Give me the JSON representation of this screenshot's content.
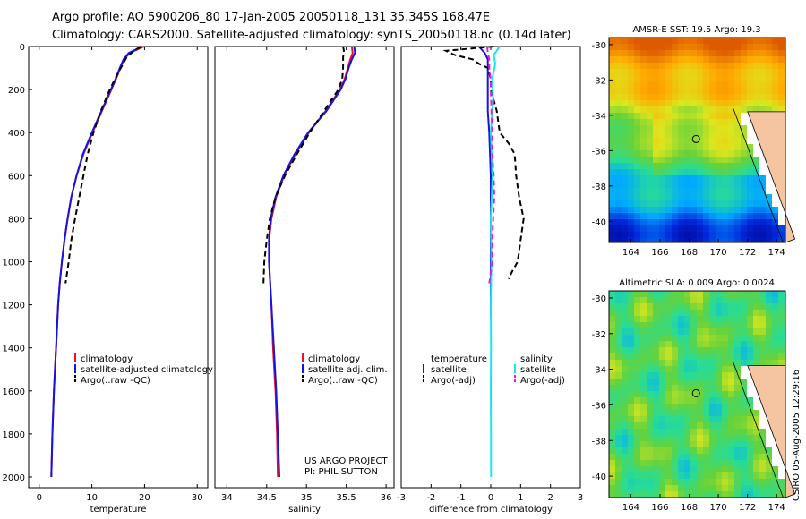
{
  "header": {
    "line1": "Argo profile: AO 5900206_80 17-Jan-2005 20050118_131 35.345S 168.47E",
    "line2": "Climatology: CARS2000. Satellite-adjusted climatology: synTS_20050118.nc (0.14d later)"
  },
  "colors": {
    "climatology": "#e8102a",
    "satellite": "#1414e6",
    "argo": "#000000",
    "sat_salinity": "#19e6e6",
    "argo_salinity": "#e619e6"
  },
  "chart_data": [
    {
      "id": "temperature",
      "type": "line",
      "xlabel": "temperature",
      "ylabel": "",
      "xlim": [
        -2,
        32
      ],
      "ylim": [
        2050,
        0
      ],
      "xticks": [
        0,
        10,
        20,
        30
      ],
      "yticks": [
        0,
        200,
        400,
        600,
        800,
        1000,
        1200,
        1400,
        1600,
        1800,
        2000
      ],
      "legend": [
        "climatology",
        "satellite-adjusted climatology",
        "Argo(..raw -QC)"
      ],
      "series": [
        {
          "name": "climatology",
          "color": "#e8102a",
          "dash": false,
          "depth": [
            0,
            30,
            60,
            100,
            150,
            200,
            300,
            400,
            500,
            600,
            700,
            800,
            900,
            1000,
            1100,
            1200,
            1400,
            1600,
            1800,
            2000
          ],
          "values": [
            19.9,
            17.2,
            16.1,
            15.4,
            14.6,
            13.7,
            11.9,
            10.1,
            8.4,
            7.1,
            6.1,
            5.4,
            4.8,
            4.3,
            3.9,
            3.6,
            3.2,
            2.8,
            2.5,
            2.3
          ]
        },
        {
          "name": "satellite-adjusted climatology",
          "color": "#1414e6",
          "dash": false,
          "depth": [
            0,
            30,
            60,
            100,
            150,
            200,
            300,
            400,
            500,
            600,
            700,
            800,
            900,
            1000,
            1100,
            1200,
            1400,
            1600,
            1800,
            2000
          ],
          "values": [
            19.5,
            17.0,
            16.0,
            15.3,
            14.5,
            13.6,
            11.8,
            10.0,
            8.3,
            7.1,
            6.1,
            5.4,
            4.8,
            4.3,
            3.9,
            3.6,
            3.2,
            2.8,
            2.5,
            2.3
          ]
        },
        {
          "name": "Argo(..raw -QC)",
          "color": "#000000",
          "dash": true,
          "depth": [
            0,
            20,
            50,
            100,
            150,
            200,
            300,
            400,
            500,
            600,
            700,
            800,
            900,
            1000,
            1100
          ],
          "values": [
            19.3,
            18.0,
            16.6,
            15.5,
            14.4,
            13.4,
            11.7,
            10.3,
            9.2,
            8.4,
            7.6,
            6.8,
            6.1,
            5.6,
            5.0
          ]
        }
      ],
      "credit": []
    },
    {
      "id": "salinity",
      "type": "line",
      "xlabel": "salinity",
      "ylabel": "",
      "xlim": [
        33.85,
        36.1
      ],
      "ylim": [
        2050,
        0
      ],
      "xticks": [
        34,
        34.5,
        35,
        35.5,
        36
      ],
      "yticks": [],
      "legend": [
        "climatology",
        "satellite adj. clim.",
        "Argo(..raw -QC)"
      ],
      "series": [
        {
          "name": "climatology",
          "color": "#e8102a",
          "dash": false,
          "depth": [
            0,
            30,
            60,
            100,
            150,
            200,
            300,
            400,
            500,
            600,
            700,
            800,
            900,
            1000,
            1200,
            1400,
            1600,
            1800,
            2000
          ],
          "values": [
            35.57,
            35.58,
            35.55,
            35.52,
            35.48,
            35.42,
            35.24,
            35.03,
            34.86,
            34.72,
            34.62,
            34.56,
            34.53,
            34.53,
            34.56,
            34.58,
            34.61,
            34.63,
            34.64
          ]
        },
        {
          "name": "satellite adj. clim.",
          "color": "#1414e6",
          "dash": false,
          "depth": [
            0,
            30,
            60,
            100,
            150,
            200,
            300,
            400,
            500,
            600,
            700,
            800,
            900,
            1000,
            1200,
            1400,
            1600,
            1800,
            2000
          ],
          "values": [
            35.6,
            35.61,
            35.57,
            35.53,
            35.49,
            35.43,
            35.25,
            35.02,
            34.85,
            34.71,
            34.61,
            34.55,
            34.53,
            34.53,
            34.56,
            34.59,
            34.62,
            34.64,
            34.66
          ]
        },
        {
          "name": "Argo(..raw -QC)",
          "color": "#000000",
          "dash": true,
          "depth": [
            0,
            20,
            50,
            100,
            150,
            200,
            300,
            400,
            500,
            600,
            700,
            800,
            900,
            1000,
            1100
          ],
          "values": [
            35.46,
            35.47,
            35.46,
            35.46,
            35.45,
            35.4,
            35.22,
            35.04,
            34.88,
            34.73,
            34.61,
            34.54,
            34.5,
            34.47,
            34.46
          ]
        }
      ],
      "credit": [
        "US ARGO PROJECT",
        "PI: PHIL SUTTON"
      ]
    },
    {
      "id": "difference",
      "type": "line",
      "xlabel": "difference from climatology",
      "ylabel": "",
      "xlim": [
        -3,
        3
      ],
      "ylim": [
        2050,
        0
      ],
      "xticks": [
        -3,
        -2,
        -1,
        0,
        1,
        2,
        3
      ],
      "yticks": [],
      "legend_left": [
        "temperature",
        "satellite",
        "Argo(-adj)"
      ],
      "legend_right": [
        "salinity",
        "satellite",
        "Argo(-adj)"
      ],
      "series": [
        {
          "name": "temperature satellite",
          "color": "#1414e6",
          "dash": false,
          "depth": [
            0,
            30,
            60,
            100,
            150,
            200,
            300,
            400,
            600,
            800,
            1000,
            1250
          ],
          "values": [
            -0.4,
            -0.2,
            -0.1,
            -0.1,
            -0.1,
            -0.1,
            -0.1,
            -0.05,
            0,
            0,
            0,
            0
          ]
        },
        {
          "name": "temperature Argo(-adj)",
          "color": "#000000",
          "dash": true,
          "depth": [
            0,
            20,
            40,
            60,
            80,
            100,
            150,
            200,
            300,
            400,
            450,
            500,
            600,
            700,
            800,
            900,
            1000,
            1050,
            1080
          ],
          "values": [
            0.1,
            -1.5,
            -1.2,
            -0.6,
            -0.4,
            -0.1,
            0,
            0,
            0.2,
            0.3,
            0.6,
            0.8,
            0.85,
            0.95,
            1.1,
            1.0,
            0.9,
            0.7,
            0.6
          ]
        },
        {
          "name": "salinity satellite",
          "color": "#19e6e6",
          "dash": false,
          "depth": [
            0,
            40,
            80,
            150,
            250,
            400,
            600,
            800,
            1000,
            1200,
            1400,
            1600,
            1800,
            2000
          ],
          "values": [
            0.3,
            0.1,
            0.15,
            0.05,
            0.08,
            0,
            0.06,
            0,
            0.02,
            0,
            0.01,
            0,
            0.01,
            0.01
          ]
        },
        {
          "name": "salinity Argo(-adj)",
          "color": "#e619e6",
          "dash": true,
          "depth": [
            0,
            30,
            60,
            100,
            150,
            200,
            300,
            400,
            500,
            600,
            700,
            800,
            900,
            1000,
            1100
          ],
          "values": [
            -0.12,
            -0.1,
            -0.05,
            -0.05,
            0,
            0,
            0.02,
            0.05,
            0.05,
            0.1,
            0.12,
            0.08,
            0.05,
            0.05,
            -0.05
          ]
        }
      ],
      "credit": []
    },
    {
      "id": "sst_map",
      "type": "heatmap",
      "title": "AMSR-E SST: 19.5 Argo: 19.3",
      "xlim": [
        162.5,
        174.6
      ],
      "ylim": [
        -41.2,
        -29.6
      ],
      "xticks": [
        164,
        166,
        168,
        170,
        172,
        174
      ],
      "yticks": [
        -30,
        -32,
        -34,
        -36,
        -38,
        -40
      ],
      "marker": {
        "lon": 168.47,
        "lat": -35.345
      }
    },
    {
      "id": "sla_map",
      "type": "heatmap",
      "title": "Altimetric SLA: 0.009 Argo: 0.0024",
      "xlim": [
        162.5,
        174.6
      ],
      "ylim": [
        -41.2,
        -29.6
      ],
      "xticks": [
        164,
        166,
        168,
        170,
        172,
        174
      ],
      "yticks": [
        -30,
        -32,
        -34,
        -36,
        -38,
        -40
      ],
      "marker": {
        "lon": 168.47,
        "lat": -35.345
      }
    }
  ],
  "footer": {
    "credit": "CSIRO 05-Aug-2005 12:29:16"
  }
}
